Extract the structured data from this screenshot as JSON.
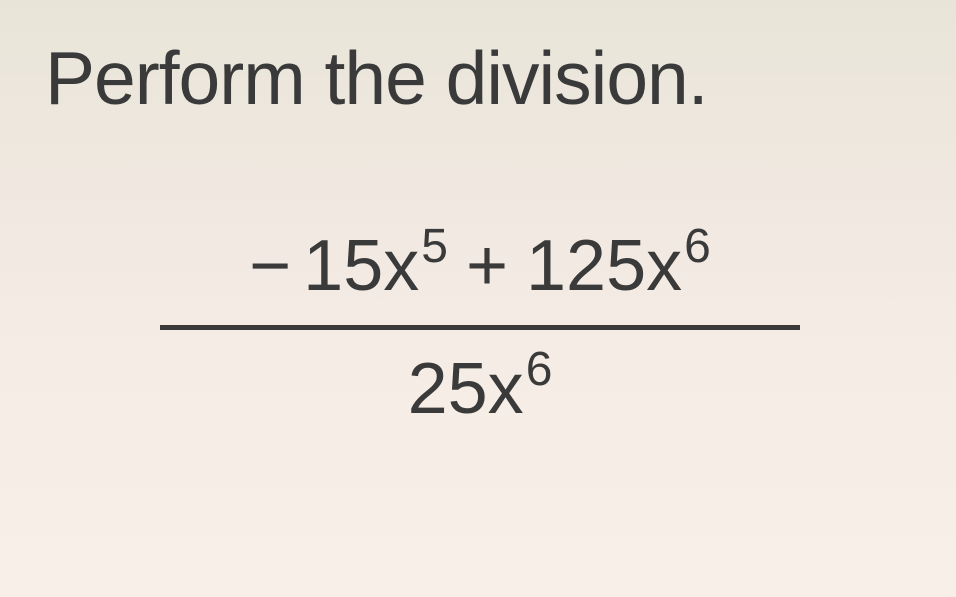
{
  "instruction": "Perform the division.",
  "fraction": {
    "numerator": {
      "term1_sign": "−",
      "term1_coef": "15x",
      "term1_exp": "5",
      "operator": "+",
      "term2_coef": "125x",
      "term2_exp": "6"
    },
    "denominator": {
      "coef": "25x",
      "exp": "6"
    }
  },
  "styling": {
    "text_color": "#3a3a3a",
    "background_gradient_top": "#e8e5d8",
    "background_gradient_bottom": "#f8f0e8",
    "instruction_fontsize": 75,
    "math_fontsize": 72,
    "superscript_fontsize": 48,
    "fraction_bar_width": 640,
    "fraction_bar_height": 5
  }
}
